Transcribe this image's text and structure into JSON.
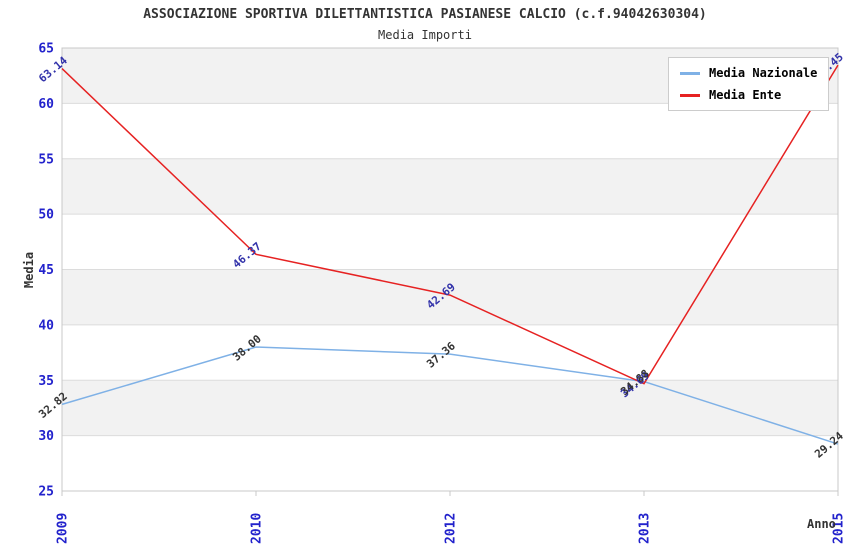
{
  "chart_data": {
    "type": "line",
    "title": "ASSOCIAZIONE SPORTIVA DILETTANTISTICA PASIANESE CALCIO (c.f.94042630304)",
    "subtitle": "Media Importi",
    "xlabel": "Anno",
    "ylabel": "Media",
    "categories": [
      "2009",
      "2010",
      "2012",
      "2013",
      "2015"
    ],
    "ylim": [
      25,
      65
    ],
    "y_ticks": [
      65,
      60,
      55,
      50,
      45,
      40,
      35,
      30,
      25
    ],
    "grid": "horizontal gridlines with alternating gray bands",
    "legend_position": "top-right",
    "series": [
      {
        "name": "Media Nazionale",
        "values": [
          32.82,
          38.0,
          37.36,
          34.88,
          29.24
        ],
        "point_labels": [
          "32.82",
          "38.00",
          "37.36",
          "34.88",
          "29.24"
        ],
        "color": "#7fb1e6",
        "label_color": "#333333"
      },
      {
        "name": "Media Ente",
        "values": [
          63.14,
          46.37,
          42.69,
          34.69,
          63.45
        ],
        "point_labels": [
          "63.14",
          "46.37",
          "42.69",
          "34.69",
          "63.45"
        ],
        "color": "#e62222",
        "label_color": "#3333aa"
      }
    ]
  },
  "colors": {
    "tick_label": "#2222cc",
    "band": "#f2f2f2",
    "gridline": "#dcdcdc",
    "spine": "#c8c8c8",
    "background": "#ffffff",
    "legend_border": "#cccccc",
    "title_text": "#333333"
  }
}
